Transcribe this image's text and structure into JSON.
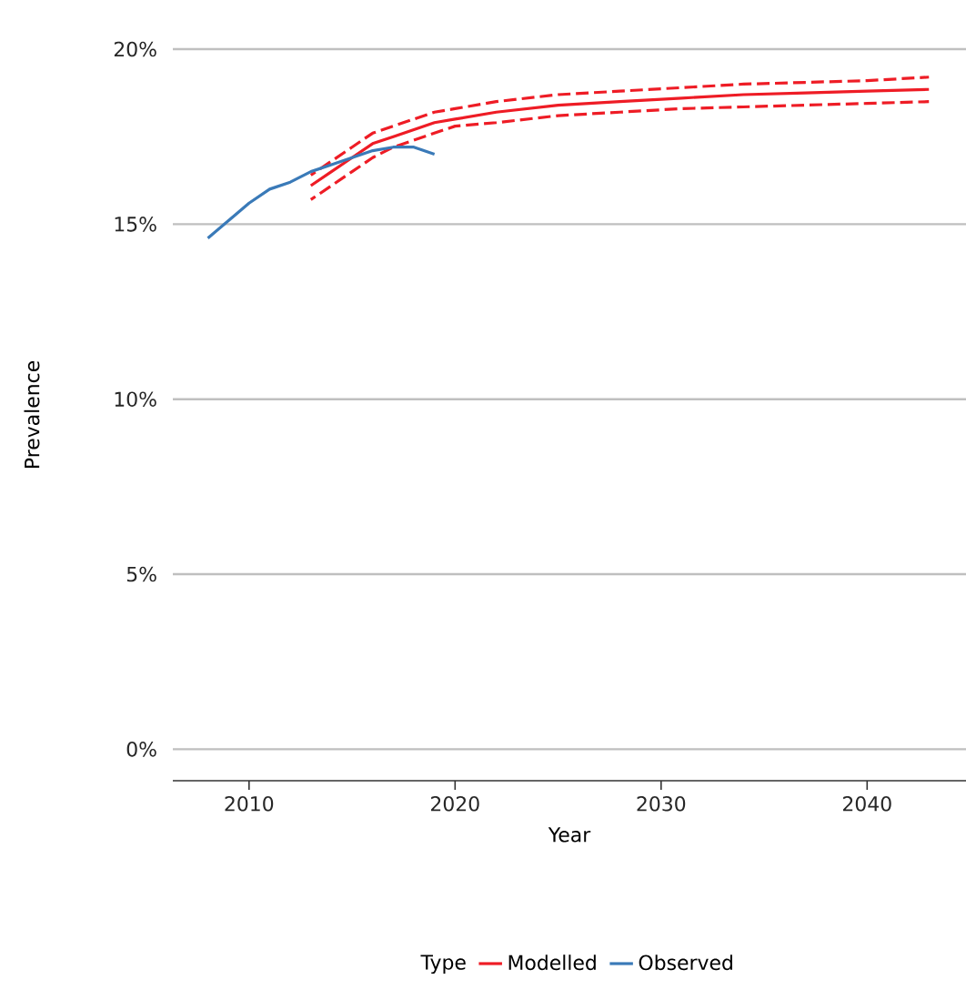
{
  "chart_data": {
    "type": "line",
    "xlabel": "Year",
    "ylabel": "Prevalence",
    "legend_title": "Type",
    "legend": "bottom",
    "grid": "y",
    "line_style": "solid",
    "xlim": [
      2006.3,
      2044.8
    ],
    "xticks": [
      2010,
      2020,
      2030,
      2040
    ],
    "ylim": [
      -0.9,
      20
    ],
    "yticks": [
      {
        "value": 0,
        "label": "0%"
      },
      {
        "value": 5,
        "label": "5%"
      },
      {
        "value": 10,
        "label": "10%"
      },
      {
        "value": 15,
        "label": "15%"
      },
      {
        "value": 20,
        "label": "20%"
      }
    ],
    "series": [
      {
        "name": "Modelled",
        "color": "#ee1c25",
        "x": [
          2013,
          2014,
          2015,
          2016,
          2017,
          2018,
          2019,
          2020,
          2022,
          2025,
          2028,
          2031,
          2034,
          2037,
          2040,
          2043
        ],
        "values": [
          16.1,
          16.5,
          16.9,
          17.3,
          17.5,
          17.7,
          17.9,
          18.0,
          18.2,
          18.4,
          18.5,
          18.6,
          18.7,
          18.75,
          18.8,
          18.85
        ]
      },
      {
        "color": "#ee1c25",
        "line_style": "dashed",
        "x": [
          2013,
          2014,
          2015,
          2016,
          2017,
          2018,
          2019,
          2020,
          2022,
          2025,
          2028,
          2031,
          2034,
          2037,
          2040,
          2043
        ],
        "values": [
          15.7,
          16.1,
          16.5,
          16.9,
          17.2,
          17.4,
          17.6,
          17.8,
          17.9,
          18.1,
          18.2,
          18.3,
          18.35,
          18.4,
          18.45,
          18.5
        ]
      },
      {
        "color": "#ee1c25",
        "line_style": "dashed",
        "x": [
          2013,
          2014,
          2015,
          2016,
          2017,
          2018,
          2019,
          2020,
          2022,
          2025,
          2028,
          2031,
          2034,
          2037,
          2040,
          2043
        ],
        "values": [
          16.4,
          16.8,
          17.2,
          17.6,
          17.8,
          18.0,
          18.2,
          18.3,
          18.5,
          18.7,
          18.8,
          18.9,
          19.0,
          19.05,
          19.1,
          19.2
        ]
      },
      {
        "name": "Observed",
        "color": "#3a7ab8",
        "x": [
          2008,
          2009,
          2010,
          2011,
          2012,
          2013,
          2014,
          2015,
          2016,
          2017,
          2018,
          2019
        ],
        "values": [
          14.6,
          15.1,
          15.6,
          16.0,
          16.2,
          16.5,
          16.7,
          16.9,
          17.1,
          17.2,
          17.2,
          17.0
        ]
      }
    ]
  }
}
